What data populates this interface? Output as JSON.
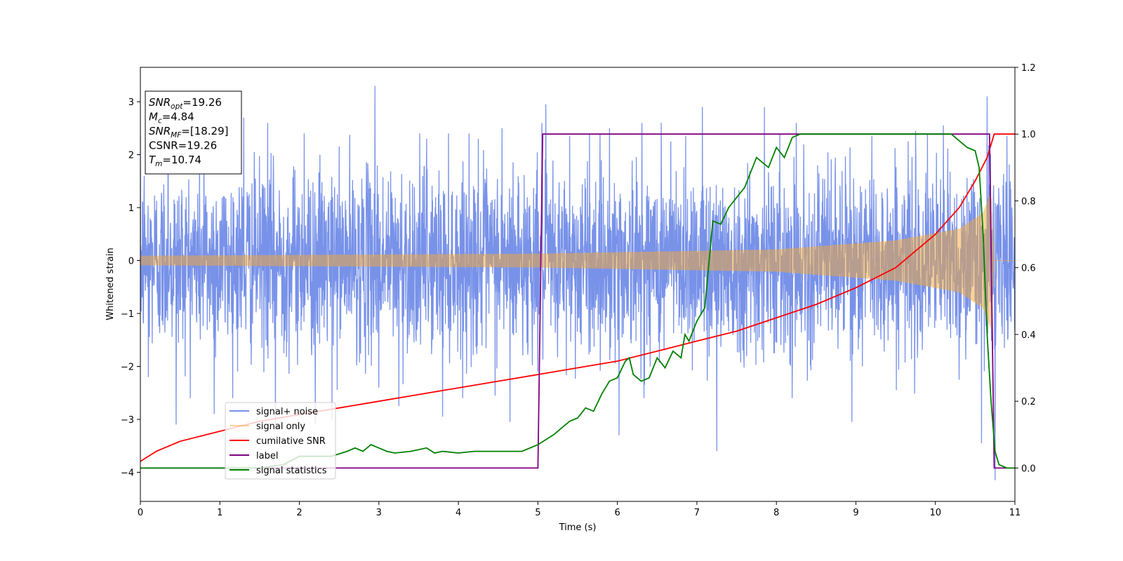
{
  "chart_data": {
    "type": "line",
    "title": "",
    "xlabel": "Time (s)",
    "ylabel": "Whitened strain",
    "y2label": "",
    "xlim": [
      0,
      11
    ],
    "ylim": [
      -4.55,
      3.65
    ],
    "y2lim": [
      -0.1,
      1.2
    ],
    "xticks": [
      "0",
      "1",
      "2",
      "3",
      "4",
      "5",
      "6",
      "7",
      "8",
      "9",
      "10",
      "11"
    ],
    "yticks": [
      "−4",
      "−3",
      "−2",
      "−1",
      "0",
      "1",
      "2",
      "3"
    ],
    "y2ticks": [
      "0.0",
      "0.2",
      "0.4",
      "0.6",
      "0.8",
      "1.0",
      "1.2"
    ],
    "grid": false,
    "legend_position": "lower-left",
    "annotation": {
      "lines": [
        {
          "main": "SNR",
          "sub": "opt",
          "value": "=19.26"
        },
        {
          "main": "M",
          "sub": "c",
          "value": "=4.84"
        },
        {
          "main": "SNR",
          "sub": "MF",
          "value": "=[18.29]"
        },
        {
          "main": "CSNR",
          "sub": "",
          "value": "=19.26"
        },
        {
          "main": "T",
          "sub": "m",
          "value": "=10.74"
        }
      ]
    },
    "series": [
      {
        "name": "signal+ noise",
        "axis": "left",
        "color": "#3f64e0",
        "opacity": 0.7,
        "style": "noise",
        "base_std": 0.85,
        "peaks": [
          [
            0.05,
            1.6
          ],
          [
            0.1,
            -2.2
          ],
          [
            0.35,
            2.5
          ],
          [
            0.45,
            -3.1
          ],
          [
            0.8,
            2.4
          ],
          [
            0.93,
            -2.9
          ],
          [
            1.3,
            2.7
          ],
          [
            1.6,
            2.6
          ],
          [
            1.7,
            -3.2
          ],
          [
            2.06,
            2.4
          ],
          [
            2.2,
            -3.1
          ],
          [
            2.41,
            -3.0
          ],
          [
            2.95,
            3.3
          ],
          [
            3.0,
            -2.4
          ],
          [
            3.25,
            -2.75
          ],
          [
            3.6,
            2.3
          ],
          [
            3.8,
            -2.95
          ],
          [
            4.25,
            2.3
          ],
          [
            4.55,
            2.5
          ],
          [
            4.65,
            -3.05
          ],
          [
            5.05,
            2.6
          ],
          [
            5.1,
            2.95
          ],
          [
            5.4,
            2.35
          ],
          [
            5.65,
            2.4
          ],
          [
            5.9,
            2.5
          ],
          [
            6.02,
            -3.3
          ],
          [
            6.31,
            2.6
          ],
          [
            6.55,
            2.6
          ],
          [
            6.67,
            2.25
          ],
          [
            6.86,
            2.35
          ],
          [
            7.07,
            2.9
          ],
          [
            7.25,
            -3.6
          ],
          [
            7.85,
            2.9
          ],
          [
            8.25,
            2.6
          ],
          [
            8.95,
            -3.05
          ],
          [
            9.2,
            2.35
          ],
          [
            9.75,
            2.45
          ],
          [
            10.1,
            2.55
          ],
          [
            10.58,
            -3.45
          ],
          [
            10.65,
            3.1
          ],
          [
            10.75,
            -4.15
          ],
          [
            10.9,
            2.35
          ]
        ]
      },
      {
        "name": "signal only",
        "axis": "left",
        "color": "#f5a833",
        "opacity": 0.5,
        "style": "chirp",
        "envelope": [
          [
            0,
            0.09
          ],
          [
            5,
            0.13
          ],
          [
            8,
            0.21
          ],
          [
            9.5,
            0.38
          ],
          [
            10.3,
            0.6
          ],
          [
            10.6,
            0.9
          ],
          [
            10.7,
            1.3
          ],
          [
            10.74,
            0.0
          ]
        ]
      },
      {
        "name": "cumilative SNR",
        "axis": "right",
        "color": "#ff0000",
        "opacity": 1,
        "style": "line",
        "x": [
          0,
          0.2,
          0.5,
          1,
          1.5,
          2,
          2.5,
          3,
          3.5,
          4,
          4.5,
          5,
          5.5,
          6,
          6.5,
          7,
          7.5,
          8,
          8.5,
          9,
          9.5,
          10,
          10.3,
          10.5,
          10.65,
          10.74,
          11
        ],
        "y": [
          0.02,
          0.05,
          0.08,
          0.11,
          0.14,
          0.16,
          0.18,
          0.2,
          0.22,
          0.24,
          0.26,
          0.28,
          0.3,
          0.32,
          0.35,
          0.38,
          0.41,
          0.45,
          0.49,
          0.54,
          0.6,
          0.7,
          0.78,
          0.86,
          0.93,
          1.0,
          1.0
        ]
      },
      {
        "name": "label",
        "axis": "right",
        "color": "#800080",
        "opacity": 1,
        "style": "line",
        "x": [
          0,
          5.0,
          5.06,
          10.68,
          10.74,
          11
        ],
        "y": [
          0,
          0,
          1,
          1,
          0,
          0
        ]
      },
      {
        "name": "signal statistics",
        "axis": "right",
        "color": "#008000",
        "opacity": 1,
        "style": "line",
        "x": [
          0,
          0.5,
          1.0,
          1.5,
          1.8,
          2.0,
          2.2,
          2.4,
          2.6,
          2.7,
          2.8,
          2.9,
          3.0,
          3.1,
          3.2,
          3.4,
          3.6,
          3.7,
          3.8,
          4.0,
          4.2,
          4.4,
          4.6,
          4.8,
          5.0,
          5.2,
          5.3,
          5.4,
          5.5,
          5.6,
          5.7,
          5.8,
          5.9,
          6.0,
          6.1,
          6.15,
          6.2,
          6.3,
          6.4,
          6.5,
          6.6,
          6.7,
          6.8,
          6.85,
          6.9,
          7.0,
          7.1,
          7.2,
          7.3,
          7.4,
          7.5,
          7.6,
          7.7,
          7.75,
          7.8,
          7.9,
          8.0,
          8.1,
          8.2,
          8.3,
          8.5,
          9.0,
          9.5,
          10.0,
          10.2,
          10.3,
          10.4,
          10.5,
          10.55,
          10.6,
          10.65,
          10.7,
          10.75,
          10.8,
          10.9,
          11
        ],
        "y": [
          0.0,
          0.0,
          0.0,
          0.0,
          0.01,
          0.035,
          0.035,
          0.035,
          0.05,
          0.06,
          0.05,
          0.07,
          0.06,
          0.05,
          0.045,
          0.05,
          0.06,
          0.045,
          0.05,
          0.045,
          0.05,
          0.05,
          0.05,
          0.05,
          0.07,
          0.1,
          0.12,
          0.14,
          0.15,
          0.18,
          0.17,
          0.22,
          0.26,
          0.27,
          0.32,
          0.33,
          0.28,
          0.26,
          0.27,
          0.33,
          0.3,
          0.35,
          0.33,
          0.4,
          0.38,
          0.44,
          0.48,
          0.74,
          0.73,
          0.78,
          0.81,
          0.84,
          0.9,
          0.93,
          0.92,
          0.9,
          0.96,
          0.93,
          0.99,
          1.0,
          1.0,
          1.0,
          1.0,
          1.0,
          1.0,
          0.98,
          0.96,
          0.95,
          0.9,
          0.7,
          0.4,
          0.2,
          0.05,
          0.01,
          0.0,
          0.0
        ]
      }
    ]
  }
}
